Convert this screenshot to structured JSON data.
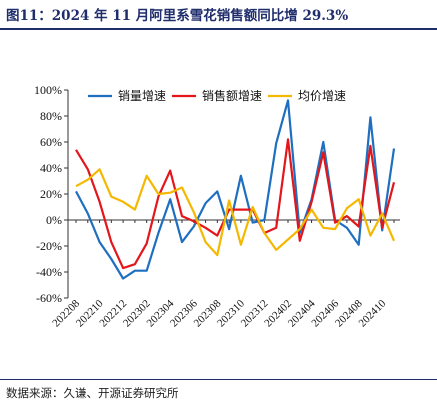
{
  "title": "图11：2024 年 11 月阿里系雪花销售额同比增 29.3%",
  "source": "数据来源：久谦、开源证券研究所",
  "chart_data": {
    "type": "line",
    "x": [
      "202208",
      "202209",
      "202210",
      "202211",
      "202212",
      "202301",
      "202302",
      "202303",
      "202304",
      "202305",
      "202306",
      "202307",
      "202308",
      "202309",
      "202310",
      "202311",
      "202312",
      "202401",
      "202402",
      "202403",
      "202404",
      "202405",
      "202406",
      "202407",
      "202408",
      "202409",
      "202410",
      "202411"
    ],
    "x_tick_labels": [
      "202208",
      "202210",
      "202212",
      "202302",
      "202304",
      "202306",
      "202308",
      "202310",
      "202312",
      "202402",
      "202404",
      "202406",
      "202408",
      "202410"
    ],
    "ylim": [
      -0.6,
      1.0
    ],
    "y_ticks": [
      "100%",
      "80%",
      "60%",
      "40%",
      "20%",
      "0%",
      "-20%",
      "-40%",
      "-60%"
    ],
    "grid": false,
    "legend_position": "top",
    "series": [
      {
        "name": "销量增速",
        "color": "#1f6fc0",
        "values": [
          0.22,
          0.05,
          -0.17,
          -0.3,
          -0.45,
          -0.39,
          -0.39,
          -0.1,
          0.16,
          -0.17,
          -0.05,
          0.13,
          0.22,
          -0.07,
          0.34,
          -0.02,
          0.0,
          0.59,
          0.92,
          -0.1,
          0.16,
          0.6,
          0.0,
          -0.06,
          -0.19,
          0.79,
          -0.08,
          0.55
        ]
      },
      {
        "name": "销售额增速",
        "color": "#e3161b",
        "values": [
          0.54,
          0.39,
          0.14,
          -0.17,
          -0.37,
          -0.34,
          -0.18,
          0.18,
          0.38,
          0.03,
          -0.01,
          -0.06,
          -0.12,
          0.08,
          0.08,
          0.08,
          -0.1,
          -0.06,
          0.62,
          -0.16,
          0.14,
          0.52,
          -0.02,
          0.03,
          -0.05,
          0.57,
          -0.06,
          0.29
        ]
      },
      {
        "name": "均价增速",
        "color": "#f5b800",
        "values": [
          0.26,
          0.31,
          0.39,
          0.18,
          0.14,
          0.08,
          0.34,
          0.2,
          0.21,
          0.25,
          0.06,
          -0.17,
          -0.27,
          0.15,
          -0.19,
          0.1,
          -0.1,
          -0.23,
          -0.15,
          -0.07,
          0.08,
          -0.06,
          -0.07,
          0.09,
          0.16,
          -0.12,
          0.05,
          -0.16
        ]
      }
    ]
  }
}
